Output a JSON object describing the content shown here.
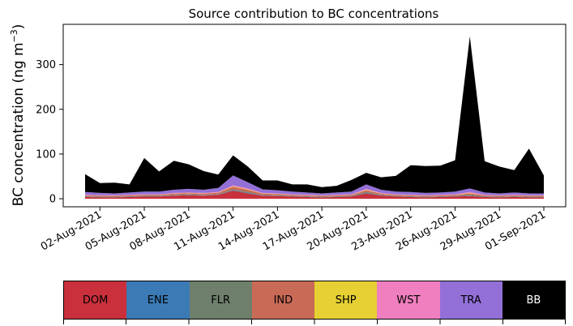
{
  "chart_data": {
    "type": "area",
    "stacked": true,
    "title": "Source contribution to BC concentrations",
    "ylabel_main": "BC concentration (ng m",
    "ylabel_sup": "−3",
    "ylabel_end": ")",
    "xlabel": "",
    "ylim": [
      -18,
      390
    ],
    "yticks": [
      0,
      100,
      200,
      300
    ],
    "x_range": [
      "2021-08-01",
      "2021-09-01"
    ],
    "xtick_labels": [
      "02-Aug-2021",
      "05-Aug-2021",
      "08-Aug-2021",
      "11-Aug-2021",
      "14-Aug-2021",
      "17-Aug-2021",
      "20-Aug-2021",
      "23-Aug-2021",
      "26-Aug-2021",
      "29-Aug-2021",
      "01-Sep-2021"
    ],
    "grid": false,
    "legend": "bottom colorbar",
    "series_order": [
      "DOM",
      "ENE",
      "FLR",
      "IND",
      "SHP",
      "WST",
      "TRA",
      "BB"
    ],
    "colors": {
      "DOM": "#c9303c",
      "ENE": "#3b7ab4",
      "FLR": "#6e7f6c",
      "IND": "#c96a57",
      "SHP": "#e6d033",
      "WST": "#f07fbf",
      "TRA": "#9370d8",
      "BB": "#000000"
    },
    "dates": [
      "2021-08-01",
      "2021-08-02",
      "2021-08-03",
      "2021-08-04",
      "2021-08-05",
      "2021-08-06",
      "2021-08-07",
      "2021-08-08",
      "2021-08-09",
      "2021-08-10",
      "2021-08-11",
      "2021-08-12",
      "2021-08-13",
      "2021-08-14",
      "2021-08-15",
      "2021-08-16",
      "2021-08-17",
      "2021-08-18",
      "2021-08-19",
      "2021-08-20",
      "2021-08-21",
      "2021-08-22",
      "2021-08-23",
      "2021-08-24",
      "2021-08-25",
      "2021-08-26",
      "2021-08-27",
      "2021-08-28",
      "2021-08-29",
      "2021-08-30",
      "2021-08-31",
      "2021-09-01"
    ],
    "series": [
      {
        "name": "DOM",
        "values": [
          4,
          3,
          3,
          4,
          5,
          5,
          7,
          8,
          7,
          9,
          18,
          12,
          7,
          6,
          5,
          4,
          3,
          4,
          5,
          12,
          7,
          5,
          4,
          3,
          4,
          5,
          6,
          4,
          3,
          4,
          3,
          3
        ]
      },
      {
        "name": "ENE",
        "values": [
          0.5,
          0.5,
          0.5,
          0.5,
          0.5,
          0.5,
          0.5,
          0.5,
          0.5,
          0.5,
          1,
          1,
          0.5,
          0.5,
          0.5,
          0.5,
          0.5,
          0.5,
          0.5,
          1,
          0.5,
          0.5,
          0.5,
          0.5,
          0.5,
          0.5,
          1,
          0.5,
          0.5,
          0.5,
          0.5,
          0.5
        ]
      },
      {
        "name": "FLR",
        "values": [
          1,
          1,
          1,
          1,
          1,
          1,
          1,
          1,
          1,
          1,
          2,
          2,
          1,
          1,
          1,
          1,
          1,
          1,
          1,
          2,
          1,
          1,
          1,
          1,
          1,
          1,
          2,
          1,
          1,
          1,
          1,
          1
        ]
      },
      {
        "name": "IND",
        "values": [
          2,
          2,
          2,
          2,
          2,
          2,
          3,
          3,
          3,
          3,
          6,
          5,
          3,
          3,
          2,
          2,
          2,
          2,
          2,
          4,
          3,
          2,
          2,
          2,
          2,
          2,
          3,
          2,
          2,
          2,
          2,
          2
        ]
      },
      {
        "name": "SHP",
        "values": [
          0.5,
          0.5,
          0.5,
          0.5,
          0.5,
          0.5,
          0.5,
          0.5,
          0.5,
          0.5,
          1,
          1,
          0.5,
          0.5,
          0.5,
          0.5,
          0.5,
          0.5,
          0.5,
          1,
          0.5,
          0.5,
          0.5,
          0.5,
          0.5,
          0.5,
          1,
          0.5,
          0.5,
          0.5,
          0.5,
          0.5
        ]
      },
      {
        "name": "WST",
        "values": [
          1,
          1,
          1,
          1,
          1,
          1,
          1,
          1,
          1,
          1,
          2,
          2,
          1,
          1,
          1,
          1,
          1,
          1,
          1,
          2,
          1,
          1,
          1,
          1,
          1,
          1,
          2,
          1,
          1,
          1,
          1,
          1
        ]
      },
      {
        "name": "TRA",
        "values": [
          6,
          5,
          4,
          5,
          6,
          6,
          7,
          8,
          7,
          9,
          22,
          14,
          8,
          7,
          6,
          5,
          4,
          5,
          6,
          10,
          7,
          6,
          6,
          5,
          5,
          6,
          8,
          5,
          4,
          5,
          4,
          4
        ]
      },
      {
        "name": "BB",
        "values": [
          40,
          22,
          24,
          18,
          75,
          45,
          65,
          55,
          42,
          30,
          45,
          35,
          20,
          22,
          16,
          18,
          14,
          15,
          26,
          26,
          28,
          35,
          60,
          60,
          60,
          70,
          340,
          70,
          60,
          50,
          100,
          40
        ]
      }
    ]
  }
}
